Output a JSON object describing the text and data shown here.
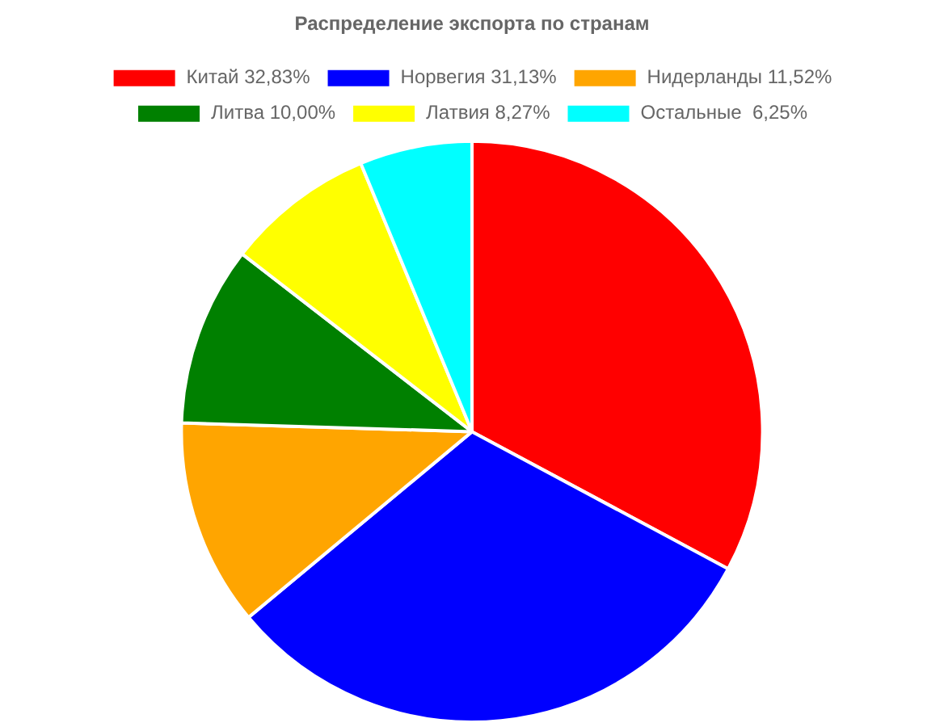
{
  "chart_data": {
    "type": "pie",
    "title": "Распределение экспорта по странам",
    "categories": [
      "Китай 32,83%",
      "Норвегия 31,13%",
      "Нидерланды 11,52%",
      "Литва 10,00%",
      "Латвия 8,27%",
      "Остальные  6,25%"
    ],
    "values": [
      32.83,
      31.13,
      11.52,
      10.0,
      8.27,
      6.25
    ],
    "colors": [
      "#ff0000",
      "#0000ff",
      "#ffa500",
      "#008000",
      "#ffff00",
      "#00ffff"
    ],
    "legend": "top"
  }
}
